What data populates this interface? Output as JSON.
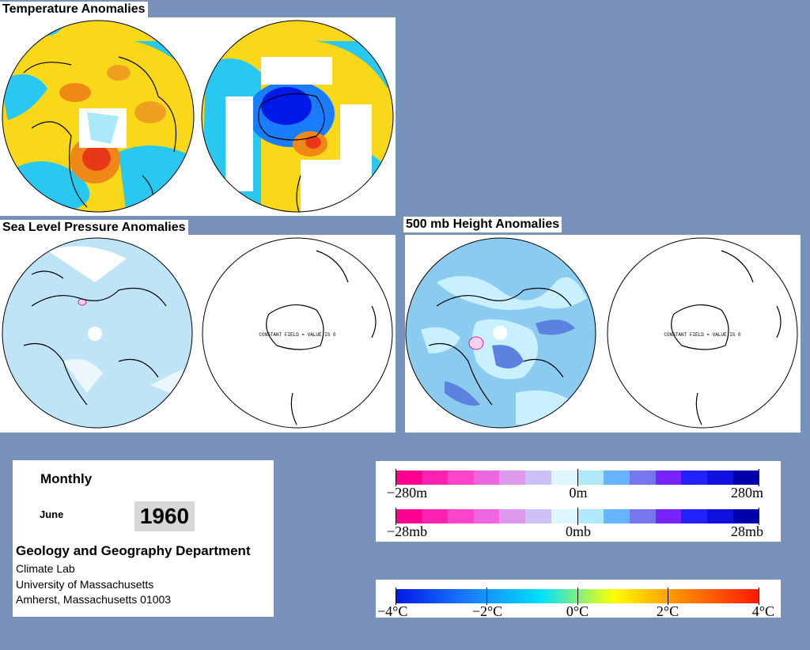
{
  "titles": {
    "temperature": "Temperature Anomalies",
    "slp": "Sea Level Pressure Anomalies",
    "height500": "500 mb Height Anomalies"
  },
  "constant_field_text": "CONSTANT FIELD = VALUE IS 0",
  "info": {
    "period": "Monthly",
    "month": "June",
    "year": "1960",
    "department": "Geology and Geography Department",
    "address_lines": [
      "Climate Lab",
      "University of Massachusetts",
      "Amherst, Massachusetts 01003"
    ]
  },
  "legends": {
    "height": {
      "labels": [
        "−280m",
        "0m",
        "280m"
      ],
      "colors": [
        "#ff0090",
        "#ff22b0",
        "#ff44cc",
        "#ee66e0",
        "#dd99ee",
        "#ccc0f4",
        "#ddf6ff",
        "#b0e8ff",
        "#66b4ff",
        "#7777ee",
        "#7722ff",
        "#2222ff",
        "#1111dd",
        "#0000aa"
      ]
    },
    "pressure": {
      "labels": [
        "−28mb",
        "0mb",
        "28mb"
      ],
      "colors": [
        "#ff0090",
        "#ff22b0",
        "#ff44cc",
        "#ee66e0",
        "#dd99ee",
        "#ccc0f4",
        "#ddf6ff",
        "#b0e8ff",
        "#66b4ff",
        "#7777ee",
        "#7722ff",
        "#2222ff",
        "#1111dd",
        "#0000aa"
      ]
    },
    "temperature": {
      "labels": [
        "−4°C",
        "−2°C",
        "0°C",
        "2°C",
        "4°C"
      ],
      "gradient": [
        "#0018e8",
        "#1a7cff",
        "#00e0ff",
        "#ffff00",
        "#ff8000",
        "#ff1800"
      ]
    }
  },
  "colors": {
    "background": "#7892bc",
    "ocean_light": "#c8f0ff",
    "slp_fill": "#bfe4f8",
    "temp_cyan": "#28c8f0",
    "temp_yellow": "#f8d818",
    "temp_orange": "#f08818"
  }
}
